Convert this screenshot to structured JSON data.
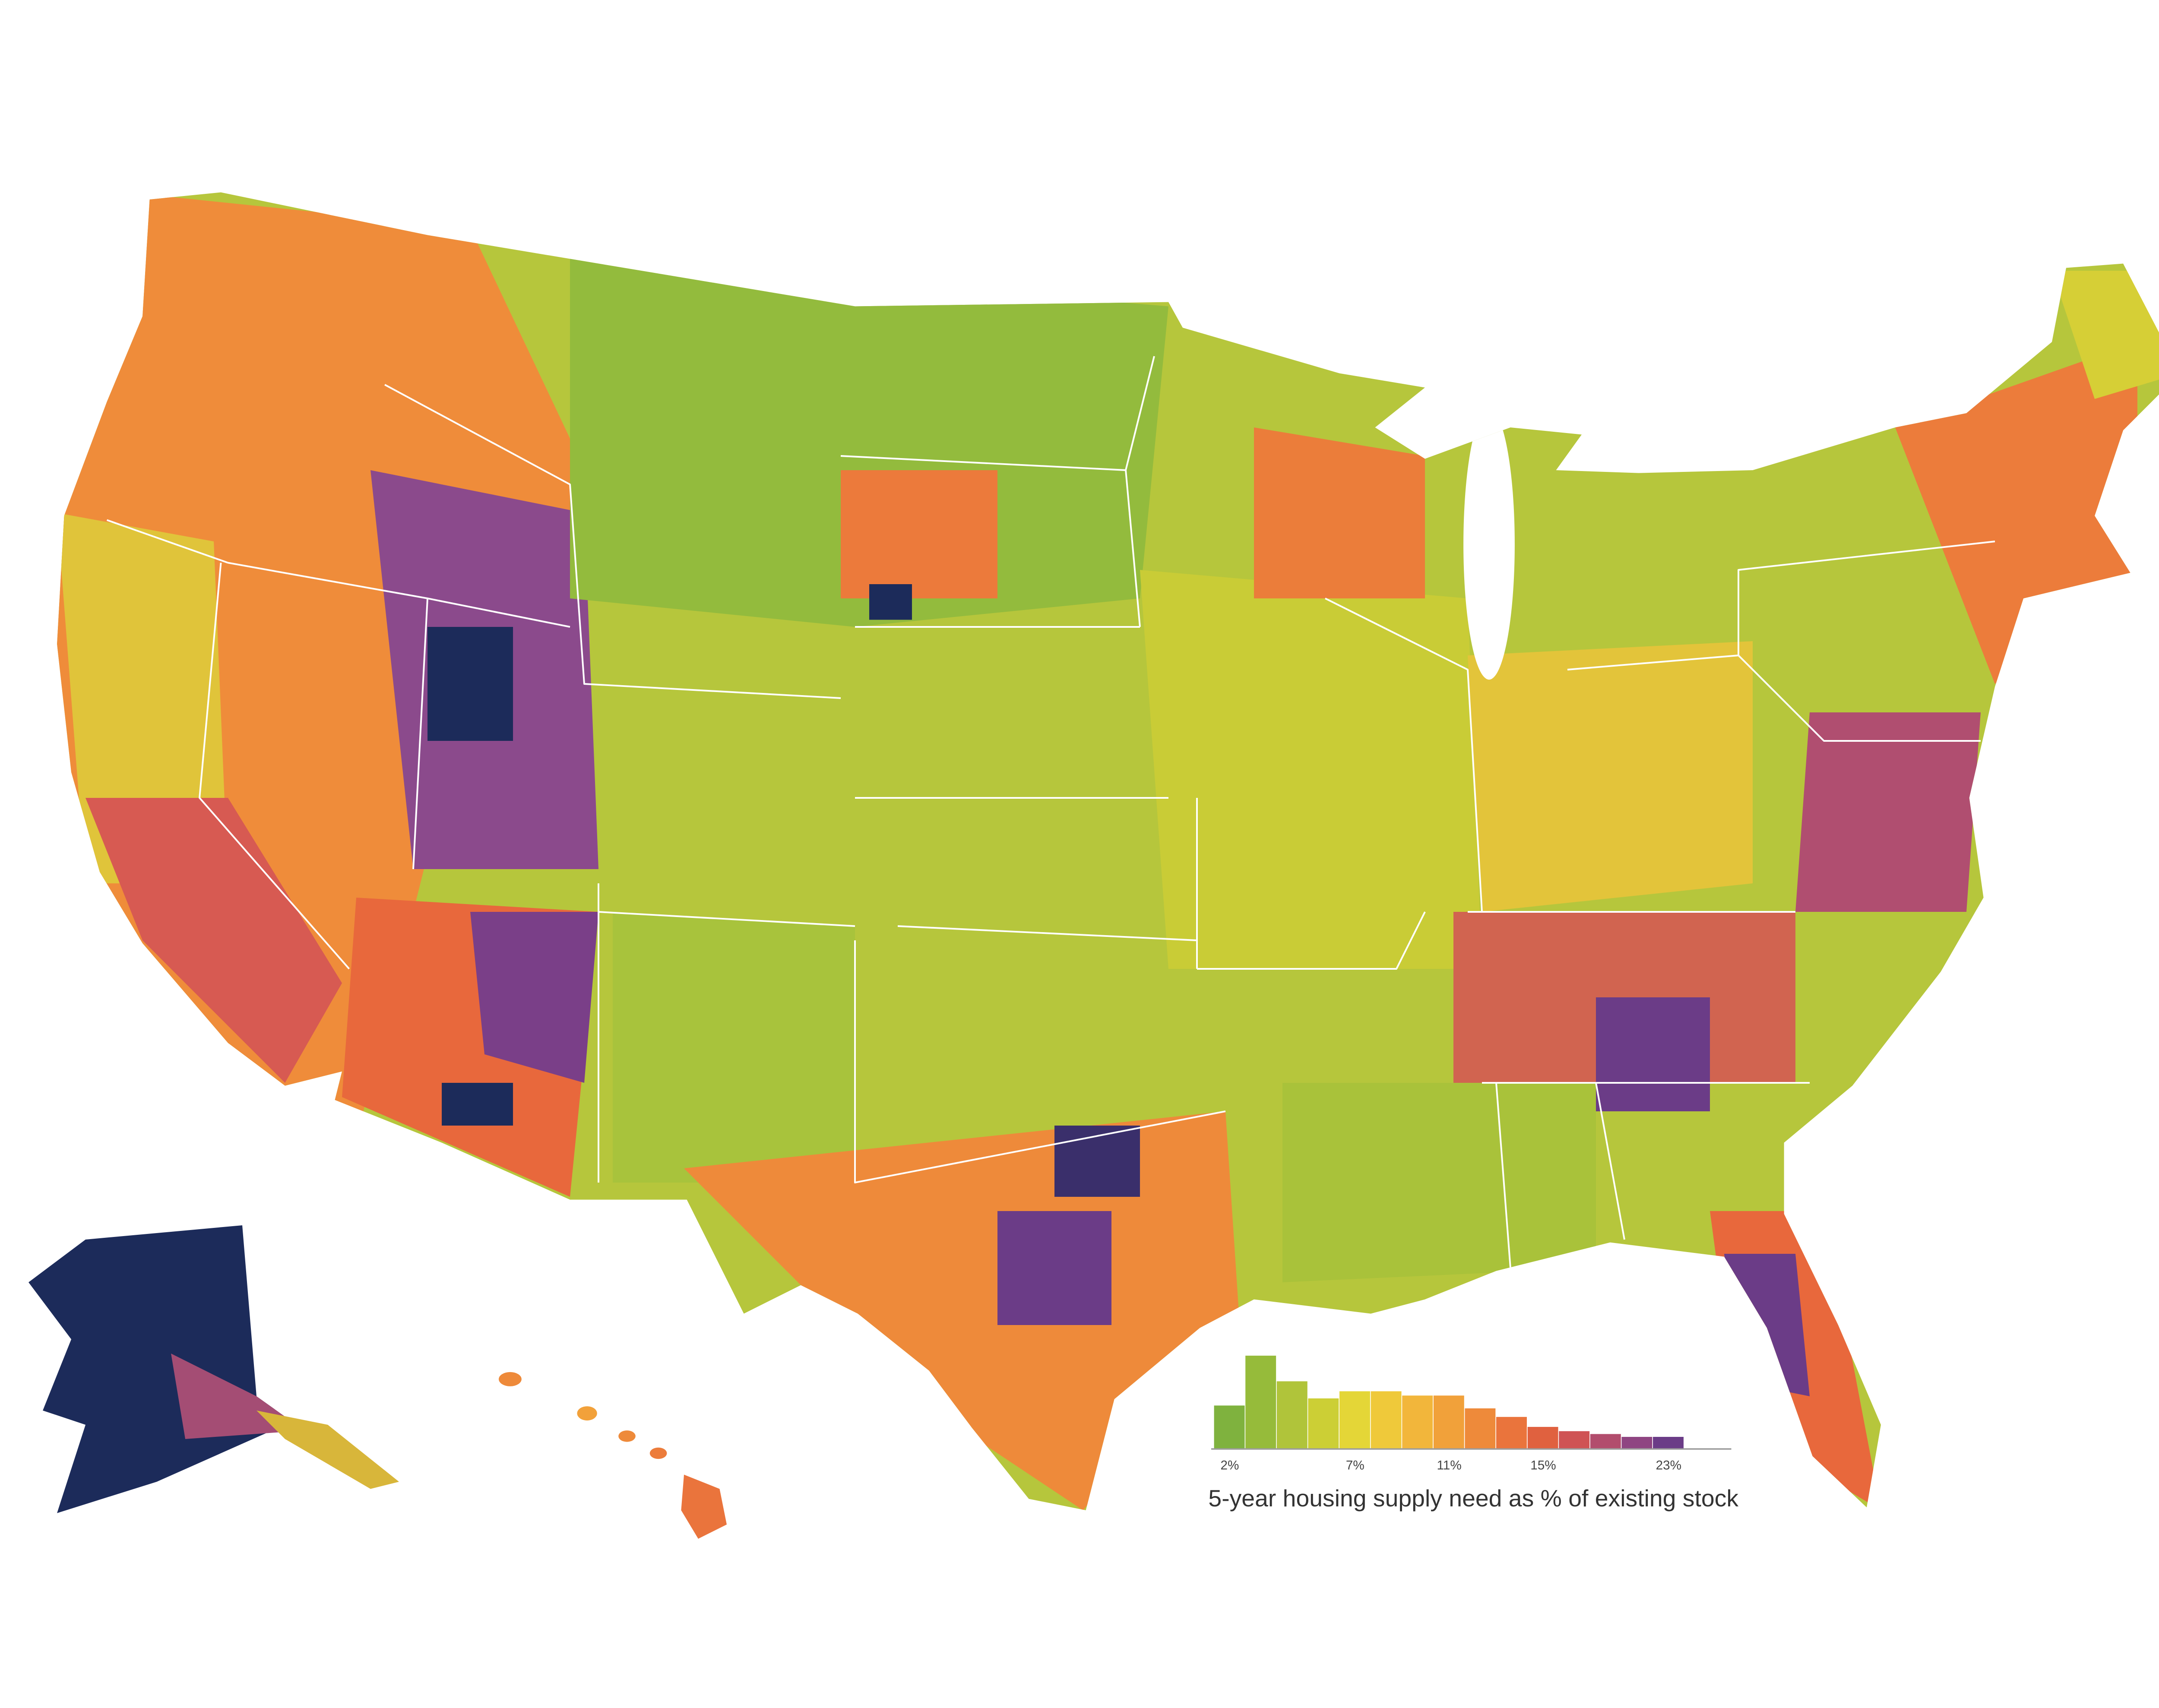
{
  "chart_data": {
    "type": "bar",
    "title": "5-year housing supply need as % of existing stock",
    "categories": [
      "2%",
      null,
      null,
      null,
      "7%",
      null,
      null,
      "11%",
      null,
      null,
      "15%",
      null,
      null,
      null,
      "23%"
    ],
    "values": [
      30,
      65,
      47,
      35,
      40,
      40,
      37,
      37,
      28,
      22,
      15,
      12,
      10,
      8,
      8
    ],
    "colors": [
      "#7fb23e",
      "#96bb3a",
      "#b0c43a",
      "#cccf35",
      "#e4d637",
      "#efc93a",
      "#f2b63b",
      "#f1a13a",
      "#ee8a3a",
      "#ea743c",
      "#e0613f",
      "#cf5354",
      "#b24d6d",
      "#8f4582",
      "#6b3c87"
    ]
  }
}
